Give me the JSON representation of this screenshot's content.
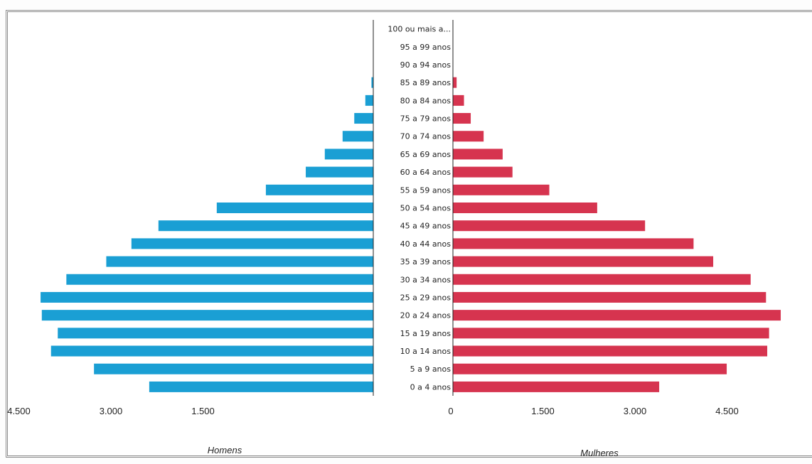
{
  "chart_data": {
    "type": "bar",
    "orientation": "horizontal",
    "categories": [
      "0 a 4 anos",
      "5 a 9 anos",
      "10 a 14 anos",
      "15 a 19 anos",
      "20 a 24 anos",
      "25 a 29 anos",
      "30 a 34 anos",
      "35 a 39 anos",
      "40 a 44 anos",
      "45 a 49 anos",
      "50 a 54 anos",
      "55 a 59 anos",
      "60 a 64 anos",
      "65 a 69 anos",
      "70 a 74 anos",
      "75 a 79 anos",
      "80 a 84 anos",
      "85 a 89 anos",
      "90 a 94 anos",
      "95 a 99 anos",
      "100 ou mais a..."
    ],
    "series": [
      {
        "name": "Homens",
        "color": "#1a9fd4",
        "values": [
          3650,
          4550,
          5250,
          5140,
          5400,
          5420,
          5000,
          4350,
          3940,
          3500,
          2550,
          1750,
          1100,
          790,
          500,
          310,
          130,
          30,
          0,
          0,
          0
        ]
      },
      {
        "name": "Mulheres",
        "color": "#d6344f",
        "values": [
          3360,
          4460,
          5120,
          5150,
          5340,
          5100,
          4850,
          4240,
          3920,
          3130,
          2350,
          1570,
          970,
          810,
          500,
          290,
          180,
          60,
          0,
          0,
          0
        ]
      }
    ],
    "x_ticks_left": [
      "4.500",
      "3.000",
      "1.500"
    ],
    "x_ticks_right": [
      "0",
      "1.500",
      "3.000",
      "4.500"
    ],
    "xlabel_left": "Homens",
    "xlabel_right": "Mulheres",
    "xlim": [
      0,
      5800
    ],
    "grid": false
  }
}
